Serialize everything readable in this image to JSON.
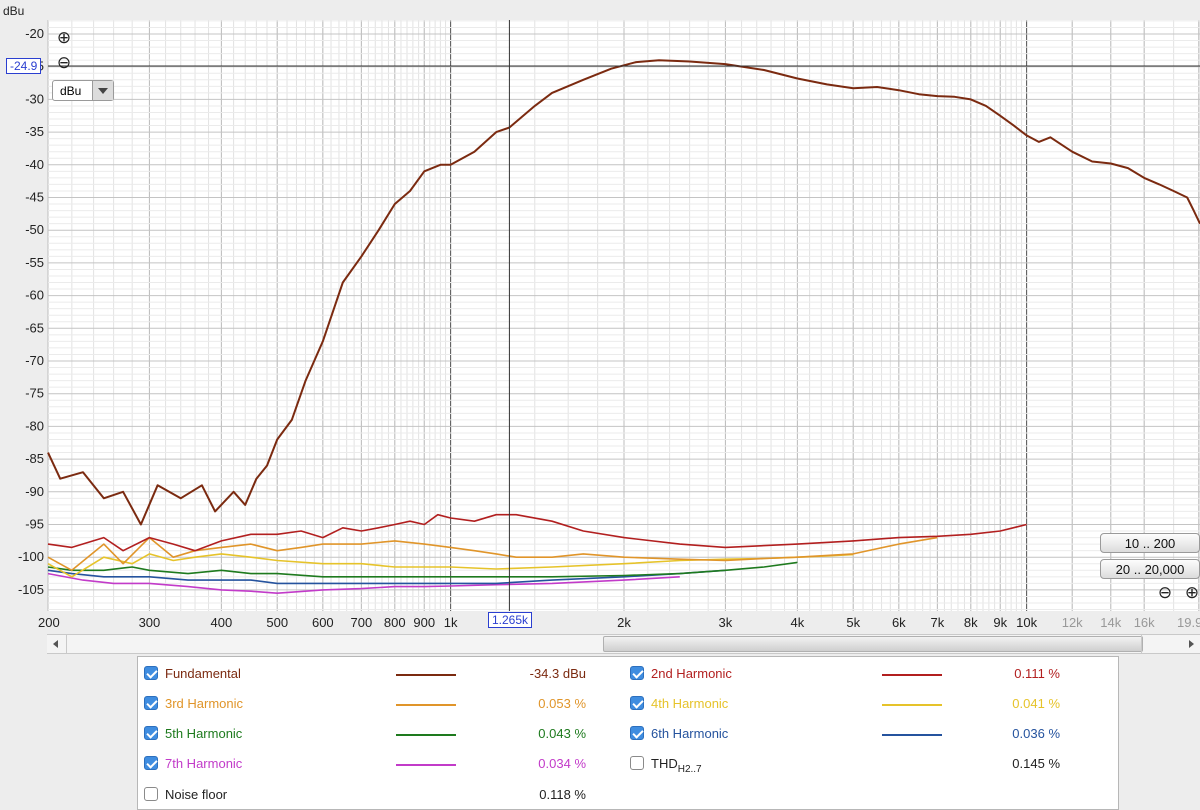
{
  "y_axis": {
    "unit": "dBu",
    "ticks": [
      -20,
      -25,
      -30,
      -35,
      -40,
      -45,
      -50,
      -55,
      -60,
      -65,
      -70,
      -75,
      -80,
      -85,
      -90,
      -95,
      -100,
      -105
    ],
    "range": [
      -108,
      -17
    ]
  },
  "x_axis": {
    "range_hz": [
      200,
      20000
    ],
    "scale": "log",
    "ticks": [
      {
        "hz": 200,
        "label": "200"
      },
      {
        "hz": 300,
        "label": "300"
      },
      {
        "hz": 400,
        "label": "400"
      },
      {
        "hz": 500,
        "label": "500"
      },
      {
        "hz": 600,
        "label": "600"
      },
      {
        "hz": 700,
        "label": "700"
      },
      {
        "hz": 800,
        "label": "800"
      },
      {
        "hz": 900,
        "label": "900"
      },
      {
        "hz": 1000,
        "label": "1k"
      },
      {
        "hz": 2000,
        "label": "2k"
      },
      {
        "hz": 3000,
        "label": "3k"
      },
      {
        "hz": 4000,
        "label": "4k"
      },
      {
        "hz": 5000,
        "label": "5k"
      },
      {
        "hz": 6000,
        "label": "6k"
      },
      {
        "hz": 7000,
        "label": "7k"
      },
      {
        "hz": 8000,
        "label": "8k"
      },
      {
        "hz": 9000,
        "label": "9k"
      },
      {
        "hz": 10000,
        "label": "10k"
      },
      {
        "hz": 12000,
        "label": "12k",
        "extended": true
      },
      {
        "hz": 14000,
        "label": "14k",
        "extended": true
      },
      {
        "hz": 16000,
        "label": "16k",
        "extended": true
      },
      {
        "hz": 19900,
        "label": "19.9",
        "extended": true
      }
    ]
  },
  "cursor": {
    "level_label": "-24.9",
    "level_dbu": -24.9,
    "freq_label": "1.265k",
    "freq_hz": 1265
  },
  "unit_select": {
    "value": "dBu"
  },
  "range_buttons": {
    "y_range": "10 .. 200",
    "x_range": "20 .. 20,000"
  },
  "icons": {
    "zoom_in": "⊕",
    "zoom_out": "⊖"
  },
  "legend": {
    "items": [
      {
        "name": "Fundamental",
        "value": "-34.3 dBu",
        "color": "#7b2a10",
        "checked": true
      },
      {
        "name": "2nd Harmonic",
        "value": "0.111 %",
        "color": "#b21f1f",
        "checked": true
      },
      {
        "name": "3rd Harmonic",
        "value": "0.053 %",
        "color": "#e0952a",
        "checked": true
      },
      {
        "name": "4th Harmonic",
        "value": "0.041 %",
        "color": "#e6c32a",
        "checked": true
      },
      {
        "name": "5th Harmonic",
        "value": "0.043 %",
        "color": "#1e7a1e",
        "checked": true
      },
      {
        "name": "6th Harmonic",
        "value": "0.036 %",
        "color": "#25539e",
        "checked": true
      },
      {
        "name": "7th Harmonic",
        "value": "0.034 %",
        "color": "#c23bc9",
        "checked": true
      },
      {
        "name": "THD",
        "subscript": "H2..7",
        "value": "0.145 %",
        "color": "#222222",
        "checked": false
      },
      {
        "name": "Noise floor",
        "value": "0.118 %",
        "color": "#7b2a10",
        "checked": false
      }
    ]
  },
  "chart_data": {
    "type": "line",
    "title": "",
    "xlabel": "",
    "ylabel": "dBu",
    "xlim": [
      200,
      20000
    ],
    "ylim": [
      -108,
      -17
    ],
    "series": [
      {
        "name": "Fundamental",
        "color": "#7b2a10",
        "points": [
          [
            200,
            -84
          ],
          [
            210,
            -88
          ],
          [
            230,
            -87
          ],
          [
            250,
            -91
          ],
          [
            270,
            -90
          ],
          [
            290,
            -95
          ],
          [
            310,
            -89
          ],
          [
            340,
            -91
          ],
          [
            370,
            -89
          ],
          [
            390,
            -93
          ],
          [
            420,
            -90
          ],
          [
            440,
            -92
          ],
          [
            460,
            -88
          ],
          [
            480,
            -86
          ],
          [
            500,
            -82
          ],
          [
            530,
            -79
          ],
          [
            560,
            -73
          ],
          [
            600,
            -67
          ],
          [
            650,
            -58
          ],
          [
            700,
            -54
          ],
          [
            750,
            -50
          ],
          [
            800,
            -46
          ],
          [
            850,
            -44
          ],
          [
            900,
            -41
          ],
          [
            960,
            -40
          ],
          [
            1000,
            -40
          ],
          [
            1100,
            -38
          ],
          [
            1200,
            -35
          ],
          [
            1265,
            -34.3
          ],
          [
            1400,
            -31
          ],
          [
            1500,
            -29
          ],
          [
            1700,
            -27
          ],
          [
            1900,
            -25.3
          ],
          [
            2100,
            -24.3
          ],
          [
            2300,
            -24.0
          ],
          [
            2600,
            -24.2
          ],
          [
            3000,
            -24.6
          ],
          [
            3500,
            -25.5
          ],
          [
            4000,
            -26.8
          ],
          [
            4500,
            -27.7
          ],
          [
            5000,
            -28.3
          ],
          [
            5500,
            -28.1
          ],
          [
            6000,
            -28.6
          ],
          [
            6500,
            -29.2
          ],
          [
            7000,
            -29.5
          ],
          [
            7500,
            -29.6
          ],
          [
            8000,
            -30.0
          ],
          [
            8500,
            -31
          ],
          [
            9000,
            -32.5
          ],
          [
            9500,
            -34
          ],
          [
            10000,
            -35.5
          ],
          [
            10500,
            -36.5
          ],
          [
            11000,
            -35.8
          ],
          [
            12000,
            -38
          ],
          [
            13000,
            -39.5
          ],
          [
            14000,
            -39.8
          ],
          [
            15000,
            -40.5
          ],
          [
            16000,
            -42
          ],
          [
            17000,
            -43
          ],
          [
            18000,
            -44
          ],
          [
            19000,
            -45
          ],
          [
            19500,
            -47
          ],
          [
            20000,
            -49
          ]
        ]
      },
      {
        "name": "2nd Harmonic",
        "color": "#b21f1f",
        "points": [
          [
            200,
            -98
          ],
          [
            220,
            -98.5
          ],
          [
            250,
            -97
          ],
          [
            270,
            -99
          ],
          [
            300,
            -97
          ],
          [
            330,
            -98
          ],
          [
            360,
            -99
          ],
          [
            400,
            -97.5
          ],
          [
            450,
            -96.5
          ],
          [
            500,
            -96.5
          ],
          [
            550,
            -96
          ],
          [
            600,
            -97
          ],
          [
            650,
            -95.5
          ],
          [
            700,
            -96
          ],
          [
            750,
            -95.5
          ],
          [
            800,
            -95
          ],
          [
            850,
            -94.5
          ],
          [
            900,
            -95
          ],
          [
            950,
            -93.5
          ],
          [
            1000,
            -94
          ],
          [
            1100,
            -94.5
          ],
          [
            1200,
            -93.5
          ],
          [
            1300,
            -93.5
          ],
          [
            1500,
            -94.5
          ],
          [
            1700,
            -96
          ],
          [
            2000,
            -97
          ],
          [
            2500,
            -98
          ],
          [
            3000,
            -98.5
          ],
          [
            4000,
            -98
          ],
          [
            5000,
            -97.5
          ],
          [
            6000,
            -97
          ],
          [
            7000,
            -96.8
          ],
          [
            8000,
            -96.5
          ],
          [
            9000,
            -96
          ],
          [
            10000,
            -95
          ]
        ]
      },
      {
        "name": "3rd Harmonic",
        "color": "#e0952a",
        "points": [
          [
            200,
            -100
          ],
          [
            220,
            -102
          ],
          [
            250,
            -98
          ],
          [
            270,
            -101
          ],
          [
            300,
            -97
          ],
          [
            330,
            -100
          ],
          [
            360,
            -99
          ],
          [
            400,
            -98.5
          ],
          [
            450,
            -98
          ],
          [
            500,
            -99
          ],
          [
            550,
            -98.5
          ],
          [
            600,
            -98
          ],
          [
            700,
            -98
          ],
          [
            800,
            -97.5
          ],
          [
            900,
            -98
          ],
          [
            1000,
            -98.5
          ],
          [
            1100,
            -99
          ],
          [
            1200,
            -99.5
          ],
          [
            1300,
            -100
          ],
          [
            1500,
            -100
          ],
          [
            1700,
            -99.5
          ],
          [
            2000,
            -100
          ],
          [
            2500,
            -100.3
          ],
          [
            3000,
            -100.5
          ],
          [
            3500,
            -100.2
          ],
          [
            4000,
            -100
          ],
          [
            5000,
            -99.5
          ],
          [
            6000,
            -98
          ],
          [
            7000,
            -97
          ]
        ]
      },
      {
        "name": "4th Harmonic",
        "color": "#e6c32a",
        "points": [
          [
            200,
            -101
          ],
          [
            220,
            -103
          ],
          [
            250,
            -100
          ],
          [
            280,
            -101
          ],
          [
            300,
            -99.5
          ],
          [
            330,
            -100.5
          ],
          [
            360,
            -100
          ],
          [
            400,
            -99.5
          ],
          [
            450,
            -100
          ],
          [
            500,
            -100.5
          ],
          [
            600,
            -101
          ],
          [
            700,
            -101
          ],
          [
            800,
            -101.5
          ],
          [
            900,
            -101.5
          ],
          [
            1000,
            -101.5
          ],
          [
            1200,
            -101.8
          ],
          [
            1500,
            -101.5
          ],
          [
            2000,
            -101
          ],
          [
            2500,
            -100.5
          ],
          [
            3000,
            -100.3
          ],
          [
            3500,
            -100.2
          ],
          [
            4000,
            -100
          ],
          [
            4500,
            -99.8
          ],
          [
            5000,
            -99.6
          ]
        ]
      },
      {
        "name": "5th Harmonic",
        "color": "#1e7a1e",
        "points": [
          [
            200,
            -101.5
          ],
          [
            220,
            -102
          ],
          [
            250,
            -102
          ],
          [
            280,
            -101.5
          ],
          [
            300,
            -102
          ],
          [
            350,
            -102.5
          ],
          [
            400,
            -102
          ],
          [
            450,
            -102.5
          ],
          [
            500,
            -102.5
          ],
          [
            600,
            -103
          ],
          [
            700,
            -103
          ],
          [
            800,
            -103
          ],
          [
            900,
            -103
          ],
          [
            1000,
            -103
          ],
          [
            1200,
            -103
          ],
          [
            1500,
            -103
          ],
          [
            2000,
            -102.8
          ],
          [
            2500,
            -102.5
          ],
          [
            3000,
            -102
          ],
          [
            3500,
            -101.5
          ],
          [
            4000,
            -100.8
          ]
        ]
      },
      {
        "name": "6th Harmonic",
        "color": "#25539e",
        "points": [
          [
            200,
            -102
          ],
          [
            220,
            -102.5
          ],
          [
            250,
            -103
          ],
          [
            300,
            -103
          ],
          [
            350,
            -103.5
          ],
          [
            400,
            -103.5
          ],
          [
            450,
            -103.5
          ],
          [
            500,
            -104
          ],
          [
            600,
            -104
          ],
          [
            700,
            -104
          ],
          [
            800,
            -104
          ],
          [
            900,
            -104
          ],
          [
            1000,
            -104
          ],
          [
            1200,
            -104
          ],
          [
            1500,
            -103.5
          ],
          [
            2000,
            -103
          ],
          [
            2500,
            -102.5
          ],
          [
            3000,
            -102
          ]
        ]
      },
      {
        "name": "7th Harmonic",
        "color": "#c23bc9",
        "points": [
          [
            200,
            -102.5
          ],
          [
            230,
            -103.5
          ],
          [
            260,
            -104
          ],
          [
            300,
            -104
          ],
          [
            350,
            -104.5
          ],
          [
            400,
            -105
          ],
          [
            450,
            -105.2
          ],
          [
            500,
            -105.5
          ],
          [
            600,
            -105
          ],
          [
            700,
            -104.8
          ],
          [
            800,
            -104.5
          ],
          [
            900,
            -104.5
          ],
          [
            1000,
            -104.4
          ],
          [
            1200,
            -104.2
          ],
          [
            1500,
            -104
          ],
          [
            2000,
            -103.5
          ],
          [
            2500,
            -103
          ]
        ]
      }
    ]
  }
}
